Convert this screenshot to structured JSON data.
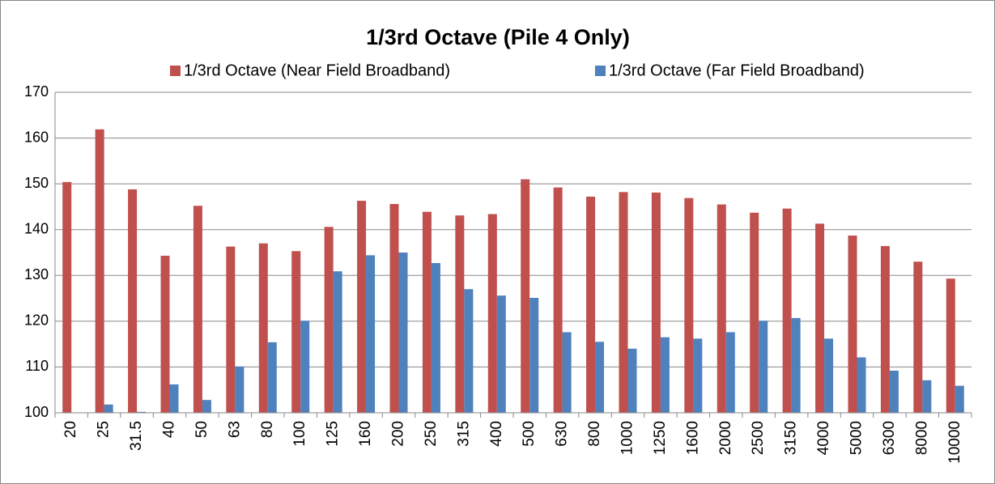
{
  "chart_data": {
    "type": "bar",
    "title": "1/3rd Octave (Pile 4 Only)",
    "categories": [
      "20",
      "25",
      "31.5",
      "40",
      "50",
      "63",
      "80",
      "100",
      "125",
      "160",
      "200",
      "250",
      "315",
      "400",
      "500",
      "630",
      "800",
      "1000",
      "1250",
      "1600",
      "2000",
      "2500",
      "3150",
      "4000",
      "5000",
      "6300",
      "8000",
      "10000"
    ],
    "series": [
      {
        "name": "1/3rd Octave (Near Field Broadband)",
        "color": "#c0504d",
        "values": [
          150.4,
          161.9,
          148.8,
          134.3,
          145.2,
          136.3,
          137,
          135.3,
          140.6,
          146.3,
          145.6,
          143.9,
          143.1,
          143.4,
          151,
          149.2,
          147.2,
          148.2,
          148.1,
          146.9,
          145.5,
          143.7,
          144.6,
          141.3,
          138.7,
          136.4,
          133,
          129.3
        ]
      },
      {
        "name": "1/3rd Octave (Far Field Broadband)",
        "color": "#4f81bd",
        "values": [
          null,
          101.8,
          100.2,
          106.2,
          102.8,
          110.1,
          115.4,
          120.1,
          130.9,
          134.4,
          135,
          132.7,
          127,
          125.6,
          125.1,
          117.6,
          115.5,
          114,
          116.5,
          116.2,
          117.6,
          120.1,
          120.7,
          116.2,
          112.1,
          109.2,
          107.1,
          105.9
        ]
      }
    ],
    "ylim": [
      100,
      170
    ],
    "yticks": [
      100,
      110,
      120,
      130,
      140,
      150,
      160,
      170
    ],
    "grid": true
  }
}
